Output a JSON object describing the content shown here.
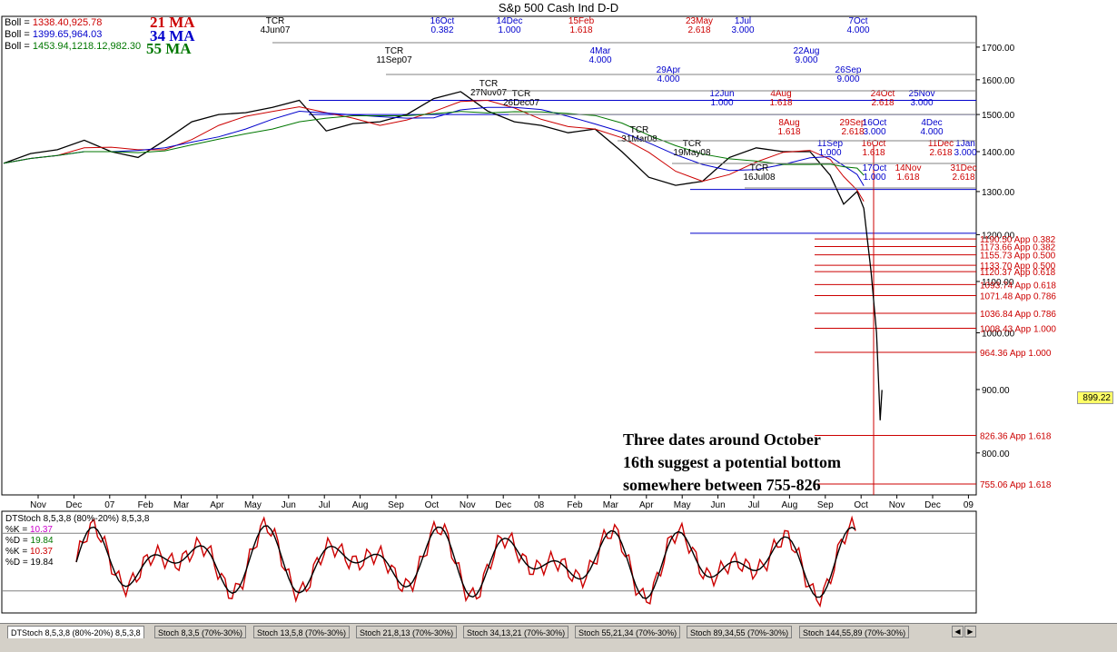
{
  "title": "S&p 500 Cash Ind D-D",
  "legend": {
    "boll_rows": [
      {
        "label": "Boll = ",
        "value": "1338.40,925.78",
        "color": "#cc0000"
      },
      {
        "label": "Boll = ",
        "value": "1399.65,964.03",
        "color": "#0000cc"
      },
      {
        "label": "Boll = ",
        "value": "1453.94,1218.12,982.30",
        "color": "#007700"
      }
    ],
    "ma_labels": [
      {
        "text": "21 MA",
        "color": "#cc0000"
      },
      {
        "text": "34 MA",
        "color": "#0000cc"
      },
      {
        "text": "55 MA",
        "color": "#007700"
      }
    ]
  },
  "note": "Three dates around October 16th suggest a potential bottom somewhere between 755-826",
  "last_price": "899.22",
  "stoch_legend": [
    {
      "text": "DTStoch 8,5,3,8 (80%-20%) 8,5,3,8",
      "color": "#000000"
    },
    {
      "text": "%K = 10.37",
      "color": "#cc00cc",
      "label": "%K = ",
      "value": "10.37"
    },
    {
      "text": "%D = 19.84",
      "color": "#007700",
      "label": "%D = ",
      "value": "19.84"
    },
    {
      "text": "%K = 10.37",
      "color": "#cc0000",
      "label": "%K = ",
      "value": "10.37"
    },
    {
      "text": "%D = 19.84",
      "color": "#000000",
      "label": "%D = ",
      "value": "19.84"
    }
  ],
  "tabs": [
    "DTStoch 8,5,3,8 (80%-20%) 8,5,3,8",
    "Stoch 8,3,5 (70%-30%)",
    "Stoch 13,5,8 (70%-30%)",
    "Stoch 21,8,13 (70%-30%)",
    "Stoch 34,13,21 (70%-30%)",
    "Stoch 55,21,34 (70%-30%)",
    "Stoch 89,34,55 (70%-30%)",
    "Stoch 144,55,89 (70%-30%)"
  ],
  "colors": {
    "red": "#cc0000",
    "blue": "#0000cc",
    "green": "#007700",
    "black": "#000000"
  },
  "chart_data": {
    "type": "line",
    "title": "S&p 500 Cash Ind D-D",
    "y_ticks": [
      800,
      900,
      1000,
      1100,
      1200,
      1300,
      1400,
      1500,
      1600,
      1700
    ],
    "y_tick_labels": [
      "800.00",
      "900.00",
      "1000.00",
      "1100.00",
      "1200.00",
      "1300.00",
      "1400.00",
      "1500.00",
      "1600.00",
      "1700.00"
    ],
    "ylim": [
      740,
      1800
    ],
    "scale": "log",
    "x_labels": [
      "Nov",
      "Dec",
      "07",
      "Feb",
      "Mar",
      "Apr",
      "May",
      "Jun",
      "Jul",
      "Aug",
      "Sep",
      "Oct",
      "Nov",
      "Dec",
      "08",
      "Feb",
      "Mar",
      "Apr",
      "May",
      "Jun",
      "Jul",
      "Aug",
      "Sep",
      "Oct",
      "Nov",
      "Dec",
      "09"
    ],
    "price_series": {
      "name": "S&P 500 daily close",
      "x_index": [
        0,
        8,
        16,
        24,
        32,
        40,
        48,
        56,
        64,
        72,
        80,
        88,
        96,
        104,
        112,
        120,
        128,
        136,
        144,
        152,
        160,
        168,
        176,
        184,
        192,
        200,
        208,
        216,
        224,
        232,
        240,
        246,
        250,
        254,
        256
      ],
      "values": [
        1370,
        1395,
        1405,
        1430,
        1400,
        1385,
        1430,
        1480,
        1500,
        1505,
        1520,
        1540,
        1455,
        1475,
        1480,
        1500,
        1545,
        1565,
        1510,
        1480,
        1470,
        1450,
        1460,
        1400,
        1335,
        1315,
        1325,
        1385,
        1410,
        1400,
        1400,
        1340,
        1270,
        1300,
        1260
      ]
    },
    "levels": [
      {
        "value": 1190.5,
        "label": "1190.50 App 0.382"
      },
      {
        "value": 1173.66,
        "label": "1173.66 App 0.382"
      },
      {
        "value": 1155.73,
        "label": "1155.73 App 0.500"
      },
      {
        "value": 1133.7,
        "label": "1133.70 App 0.500"
      },
      {
        "value": 1120.37,
        "label": "1120.37 App 0.618"
      },
      {
        "value": 1093.74,
        "label": "1093.74 App 0.618"
      },
      {
        "value": 1071.48,
        "label": "1071.48 App 0.786"
      },
      {
        "value": 1036.84,
        "label": "1036.84 App 0.786"
      },
      {
        "value": 1008.43,
        "label": "1008.43 App 1.000"
      },
      {
        "value": 964.36,
        "label": "964.36 App 1.000"
      },
      {
        "value": 826.36,
        "label": "826.36 App 1.618"
      },
      {
        "value": 755.06,
        "label": "755.06 App 1.618"
      }
    ],
    "top_labels": [
      {
        "date": "TCR",
        "value": "4Jun07",
        "color": "#000000"
      },
      {
        "date": "16Oct",
        "value": "0.382",
        "color": "#0000cc"
      },
      {
        "date": "14Dec",
        "value": "1.000",
        "color": "#0000cc"
      },
      {
        "date": "15Feb",
        "value": "1.618",
        "color": "#cc0000"
      },
      {
        "date": "23May",
        "value": "2.618",
        "color": "#cc0000"
      },
      {
        "date": "1Jul",
        "value": "3.000",
        "color": "#0000cc"
      },
      {
        "date": "7Oct",
        "value": "4.000",
        "color": "#0000cc"
      },
      {
        "date": "TCR",
        "value": "11Sep07",
        "color": "#000000"
      },
      {
        "date": "4Mar",
        "value": "4.000",
        "color": "#0000cc"
      },
      {
        "date": "22Aug",
        "value": "9.000",
        "color": "#0000cc"
      },
      {
        "date": "26Sep",
        "value": "9.000",
        "color": "#0000cc"
      },
      {
        "date": "29Apr",
        "value": "4.000",
        "color": "#0000cc"
      },
      {
        "date": "TCR",
        "value": "27Nov07",
        "color": "#000000"
      },
      {
        "date": "24Oct",
        "value": "2.618",
        "color": "#cc0000"
      },
      {
        "date": "25Nov",
        "value": "3.000",
        "color": "#0000cc"
      },
      {
        "date": "TCR",
        "value": "26Dec07",
        "color": "#000000"
      },
      {
        "date": "12Jun",
        "value": "1.000",
        "color": "#0000cc"
      },
      {
        "date": "4Aug",
        "value": "1.618",
        "color": "#cc0000"
      },
      {
        "date": "29Sep",
        "value": "2.618",
        "color": "#cc0000"
      },
      {
        "date": "16Oct",
        "value": "3.000",
        "color": "#0000cc"
      },
      {
        "date": "4Dec",
        "value": "4.000",
        "color": "#0000cc"
      },
      {
        "date": "TCR",
        "value": "31Mar08",
        "color": "#000000"
      },
      {
        "date": "8Aug",
        "value": "1.618",
        "color": "#cc0000"
      },
      {
        "date": "11Dec",
        "value": "2.618",
        "color": "#cc0000"
      },
      {
        "date": "1Jan",
        "value": "3.000",
        "color": "#0000cc"
      },
      {
        "date": "TCR",
        "value": "19May08",
        "color": "#000000"
      },
      {
        "date": "11Sep",
        "value": "1.000",
        "color": "#0000cc"
      },
      {
        "date": "16Oct",
        "value": "1.618",
        "color": "#cc0000"
      },
      {
        "date": "TCR",
        "value": "16Jul08",
        "color": "#000000"
      },
      {
        "date": "14Nov",
        "value": "1.618",
        "color": "#cc0000"
      },
      {
        "date": "31Dec",
        "value": "2.618",
        "color": "#cc0000"
      },
      {
        "date": "17Oct",
        "value": "1.000",
        "color": "#0000cc"
      }
    ],
    "stoch": {
      "overbought": 80,
      "oversold": 20,
      "k_last": 10.37,
      "d_last": 19.84
    }
  }
}
